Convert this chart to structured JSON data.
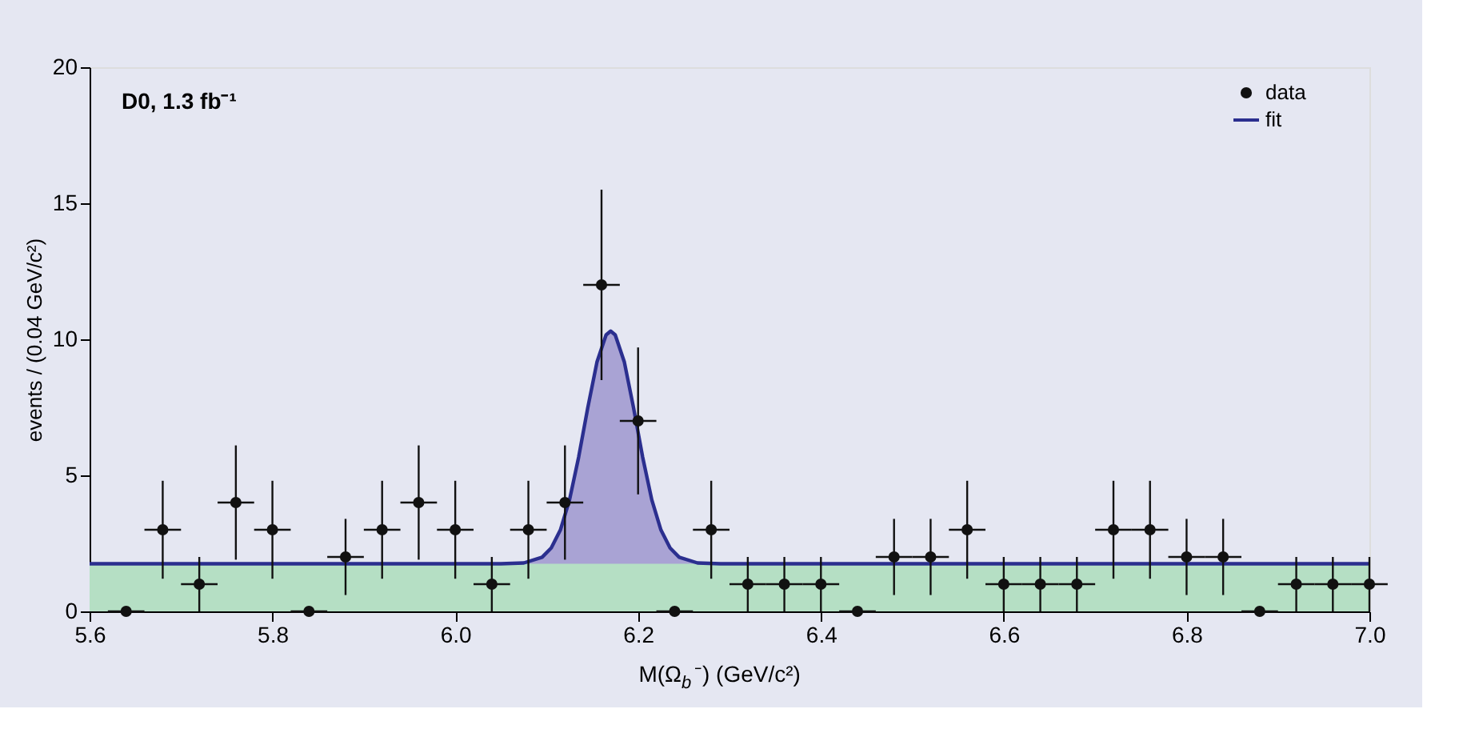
{
  "chart_data": {
    "type": "scatter",
    "xlabel": "M(Ω$_{b}$⁻) (GeV/c²)",
    "ylabel": "events / (0.04 GeV/c²)",
    "annotations": [
      "D0, 1.3 fb⁻¹"
    ],
    "xlim": [
      5.6,
      7.0
    ],
    "xticks": [
      5.6,
      5.8,
      {
        "value": 6.0,
        "label": "6.0"
      },
      6.2,
      6.4,
      6.6,
      6.8,
      {
        "value": 7.0,
        "label": "7.0"
      }
    ],
    "ylim": [
      0,
      20
    ],
    "yticks": [
      0,
      5,
      10,
      15,
      20
    ],
    "grid": false,
    "legend": "top right",
    "bands": [
      {
        "axis": "y",
        "from": 0,
        "to": 1.75,
        "color": "#b5dfc4"
      }
    ],
    "series": [
      {
        "name": "data",
        "marker": "circle",
        "color": "#111111",
        "x": [
          5.64,
          5.68,
          5.72,
          5.76,
          5.8,
          5.84,
          5.88,
          5.92,
          5.96,
          6.0,
          6.04,
          6.08,
          6.12,
          6.16,
          6.2,
          6.24,
          6.28,
          6.32,
          6.36,
          6.4,
          6.44,
          6.48,
          6.52,
          6.56,
          6.6,
          6.64,
          6.68,
          6.72,
          6.76,
          6.8,
          6.84,
          6.88,
          6.92,
          6.96,
          7.0
        ],
        "values": [
          0,
          3,
          1,
          4,
          3,
          0,
          2,
          3,
          4,
          3,
          1,
          3,
          4,
          12,
          7,
          0,
          3,
          1,
          1,
          1,
          0,
          2,
          2,
          3,
          1,
          1,
          1,
          3,
          3,
          2,
          2,
          0,
          1,
          1,
          1
        ],
        "errors": [
          null,
          1.8,
          1,
          2.1,
          1.8,
          null,
          1.4,
          1.8,
          2.1,
          1.8,
          1,
          1.8,
          2.1,
          3.5,
          2.7,
          null,
          1.8,
          1,
          1,
          1,
          null,
          1.4,
          1.4,
          1.8,
          1,
          1,
          1,
          1.8,
          1.8,
          1.4,
          1.4,
          null,
          1,
          1,
          1
        ],
        "xerrors": [
          0.02,
          0.02,
          0.02,
          0.02,
          0.02,
          0.02,
          0.02,
          0.02,
          0.02,
          0.02,
          0.02,
          0.02,
          0.02,
          0.02,
          0.02,
          0.02,
          0.02,
          0.02,
          0.02,
          0.02,
          0.02,
          0.02,
          0.02,
          0.02,
          0.02,
          0.02,
          0.02,
          0.02,
          0.02,
          0.02,
          0.02,
          0.02,
          0.02,
          0.02,
          0.02
        ]
      },
      {
        "type": "area",
        "color": "#a9a3d4",
        "x": [
          6.05,
          6.075,
          6.095,
          6.105,
          6.115,
          6.125,
          6.135,
          6.145,
          6.155,
          6.165,
          6.17,
          6.175,
          6.185,
          6.195,
          6.205,
          6.215,
          6.225,
          6.235,
          6.245,
          6.265,
          6.29
        ],
        "values": [
          1.75,
          1.78,
          1.99,
          2.33,
          2.99,
          4.1,
          5.67,
          7.49,
          9.16,
          10.16,
          10.3,
          10.16,
          9.16,
          7.49,
          5.67,
          4.1,
          2.99,
          2.33,
          1.99,
          1.78,
          1.75
        ]
      },
      {
        "name": "fit",
        "type": "line",
        "line_style": "solid",
        "color": "#2b2f8f",
        "x": [
          5.6,
          6.05,
          6.075,
          6.095,
          6.105,
          6.115,
          6.125,
          6.135,
          6.145,
          6.155,
          6.165,
          6.17,
          6.175,
          6.185,
          6.195,
          6.205,
          6.215,
          6.225,
          6.235,
          6.245,
          6.265,
          6.29,
          7.0
        ],
        "values": [
          1.75,
          1.75,
          1.78,
          1.99,
          2.33,
          2.99,
          4.1,
          5.67,
          7.49,
          9.16,
          10.16,
          10.3,
          10.16,
          9.16,
          7.49,
          5.67,
          4.1,
          2.99,
          2.33,
          1.99,
          1.78,
          1.75,
          1.75
        ]
      }
    ]
  }
}
